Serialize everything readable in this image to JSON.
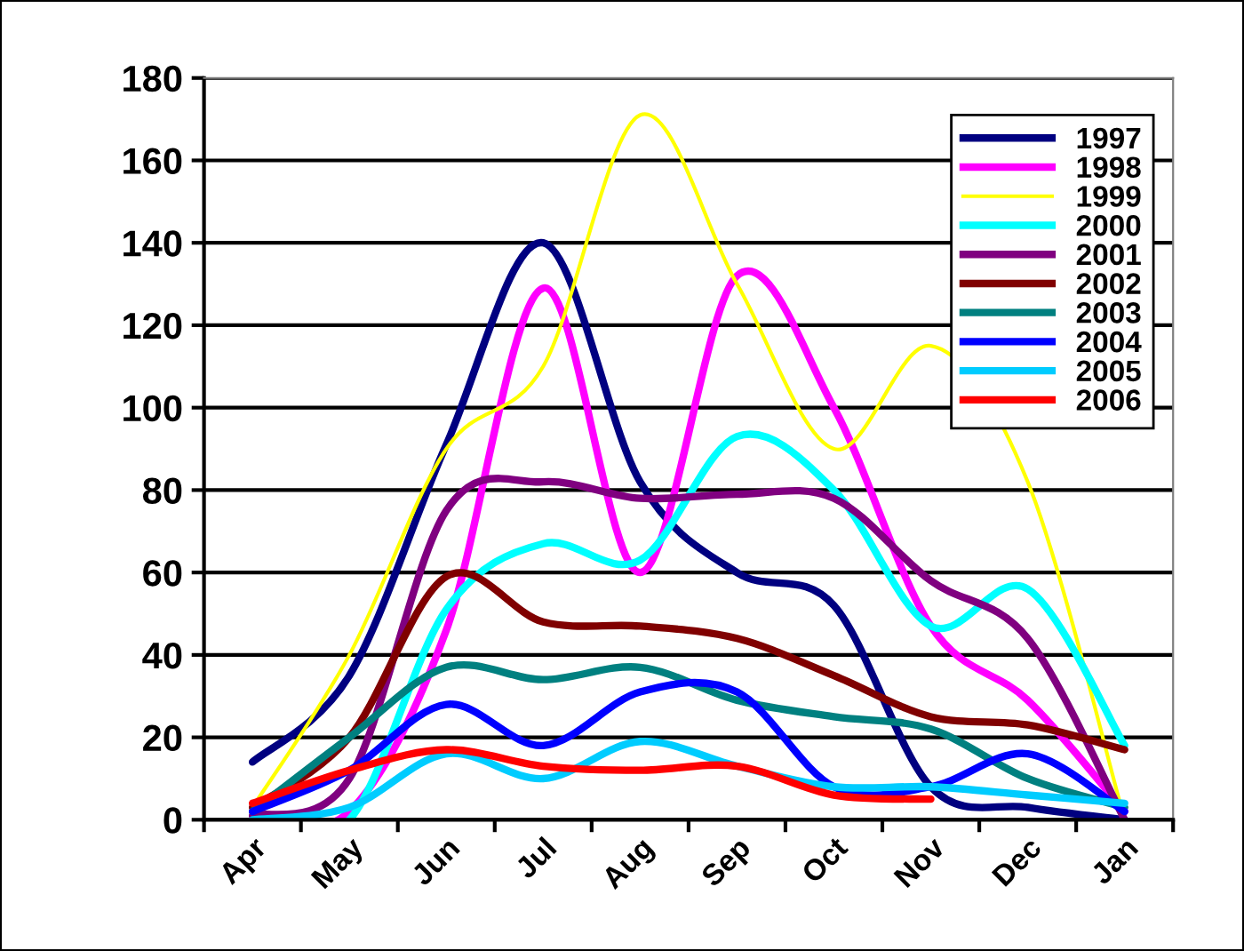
{
  "chart_data": {
    "type": "line",
    "categories": [
      "Apr",
      "May",
      "Jun",
      "Jul",
      "Aug",
      "Sep",
      "Oct",
      "Nov",
      "Dec",
      "Jan"
    ],
    "series": [
      {
        "name": "1997",
        "color": "#000080",
        "values": [
          14,
          35,
          91,
          140,
          82,
          60,
          52,
          8,
          3,
          0
        ]
      },
      {
        "name": "1998",
        "color": "#ff00ff",
        "values": [
          0,
          2,
          46,
          129,
          60,
          132,
          100,
          47,
          29,
          2
        ]
      },
      {
        "name": "1999",
        "color": "#ffff00",
        "values": [
          3,
          40,
          90,
          110,
          171,
          130,
          90,
          115,
          82,
          0
        ]
      },
      {
        "name": "2000",
        "color": "#00ffff",
        "values": [
          0,
          0,
          51,
          67,
          63,
          93,
          80,
          47,
          56,
          18
        ]
      },
      {
        "name": "2001",
        "color": "#800080",
        "values": [
          1,
          10,
          75,
          82,
          78,
          79,
          78,
          58,
          44,
          0
        ]
      },
      {
        "name": "2002",
        "color": "#800000",
        "values": [
          3,
          20,
          59,
          48,
          47,
          44,
          35,
          25,
          23,
          17
        ]
      },
      {
        "name": "2003",
        "color": "#008080",
        "values": [
          2,
          20,
          37,
          34,
          37,
          29,
          25,
          22,
          10,
          3
        ]
      },
      {
        "name": "2004",
        "color": "#0000ff",
        "values": [
          2,
          12,
          28,
          18,
          31,
          31,
          8,
          8,
          16,
          2
        ]
      },
      {
        "name": "2005",
        "color": "#00ccff",
        "values": [
          0,
          3,
          16,
          10,
          19,
          13,
          8,
          8,
          6,
          4
        ]
      },
      {
        "name": "2006",
        "color": "#ff0000",
        "values": [
          4,
          12,
          17,
          13,
          12,
          13,
          6,
          5,
          null,
          null
        ]
      }
    ],
    "ylim": [
      0,
      180
    ],
    "yticks": [
      0,
      20,
      40,
      60,
      80,
      100,
      120,
      140,
      160,
      180
    ],
    "grid": "y",
    "legend": "top right",
    "marker": "none",
    "line_style": "solid"
  }
}
